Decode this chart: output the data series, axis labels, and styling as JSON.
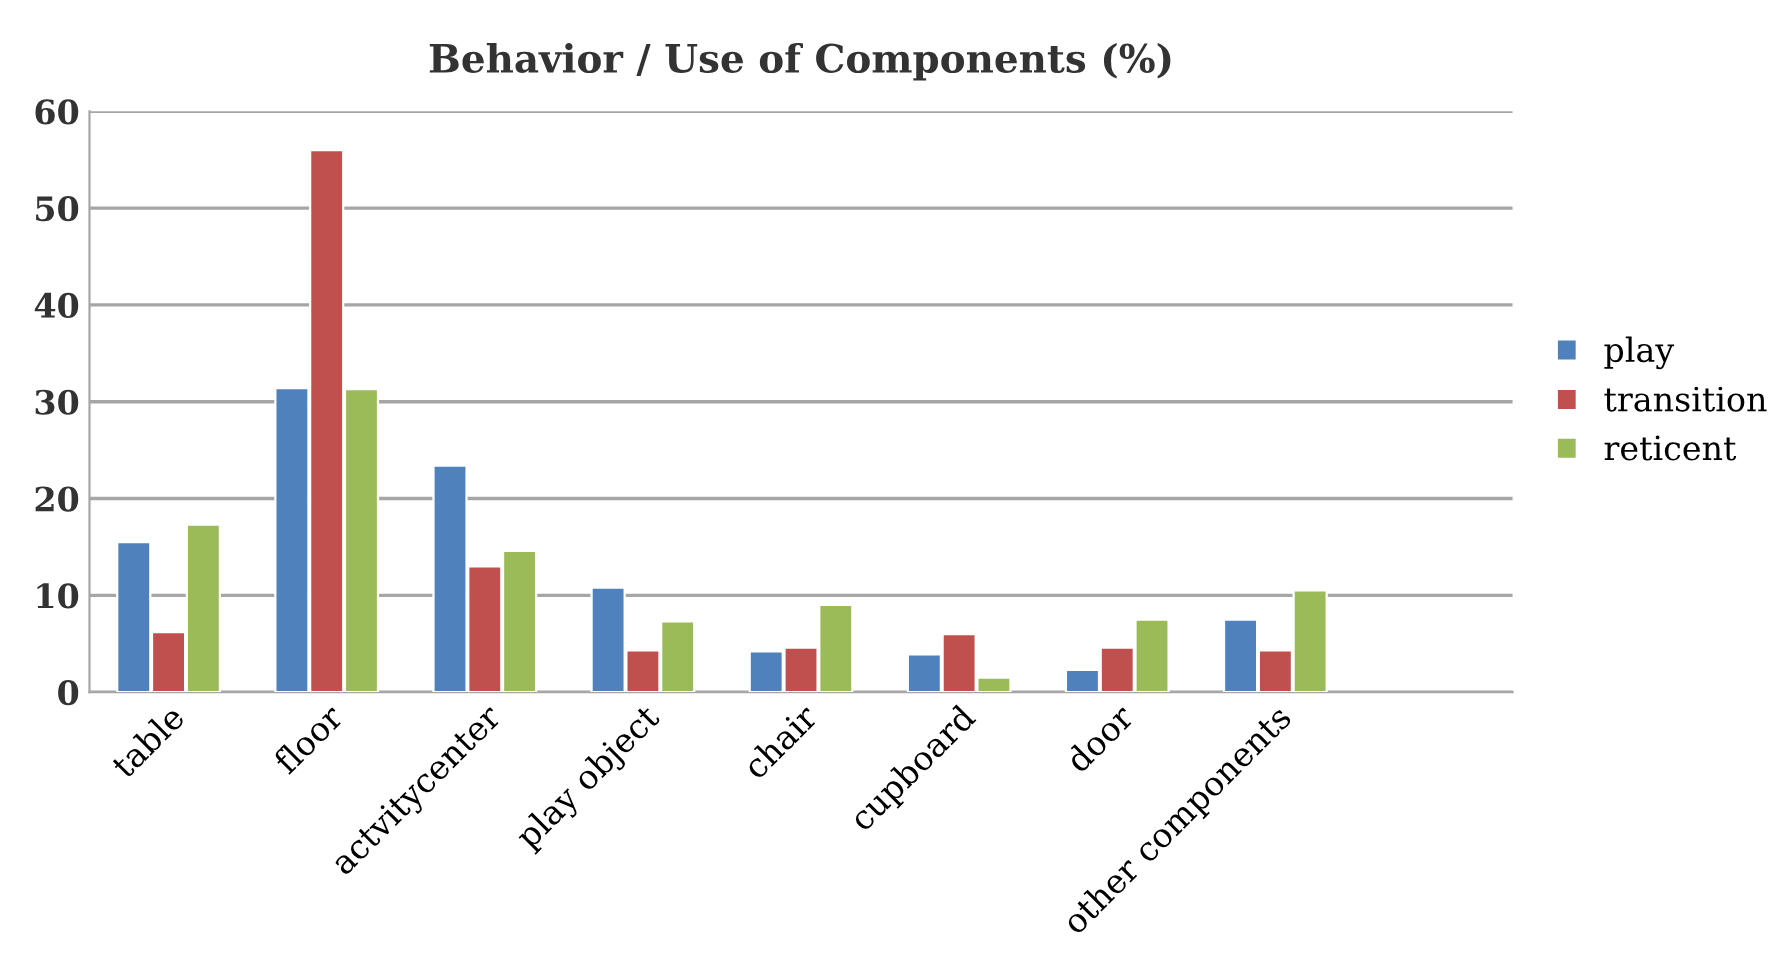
{
  "chart_data": {
    "type": "bar",
    "title": "Behavior / Use of Components (%)",
    "categories": [
      "table",
      "floor",
      "actvitycenter",
      "play object",
      "chair",
      "cupboard",
      "door",
      "other components",
      null
    ],
    "series": [
      {
        "name": "play",
        "color": "#4f81bd",
        "values": [
          15.5,
          31.4,
          23.4,
          10.8,
          4.2,
          3.9,
          2.3,
          7.5,
          null
        ]
      },
      {
        "name": "transition",
        "color": "#c0504d",
        "values": [
          6.2,
          56,
          13,
          4.3,
          4.6,
          6.0,
          4.6,
          4.3,
          null
        ]
      },
      {
        "name": "reticent",
        "color": "#9bbb59",
        "values": [
          17.3,
          31.3,
          14.6,
          7.3,
          9,
          1.5,
          7.5,
          10.5,
          null
        ]
      }
    ],
    "ylim": [
      0,
      60
    ],
    "yticks": [
      0,
      10,
      20,
      30,
      40,
      50,
      60
    ],
    "grid": "y",
    "legend": "right"
  }
}
